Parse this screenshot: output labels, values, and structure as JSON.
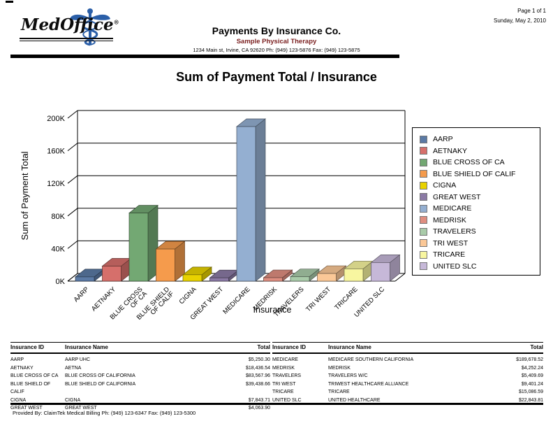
{
  "page": {
    "page_indicator": "Page 1 of 1",
    "date": "Sunday, May 2, 2010",
    "footer": "Provided By: ClaimTek Medical Billing Ph: (949) 123-6347 Fax: (949) 123-5300"
  },
  "header": {
    "logo_text": "MedOffice",
    "logo_reg": "®",
    "title": "Payments By Insurance Co.",
    "subtitle": "Sample Physical Therapy",
    "subtitle_color": "#7b2121",
    "address": "1234 Main st, Irvine, CA 92620 Ph: (949) 123-5876 Fax: (949) 123-5875"
  },
  "chart_data": {
    "type": "bar",
    "projection": "3d",
    "title": "Sum of Payment Total / Insurance",
    "xlabel": "Insurance",
    "ylabel": "Sum of Payment Total",
    "ylim": [
      0,
      200000
    ],
    "ytick_labels": [
      "0K",
      "40K",
      "80K",
      "120K",
      "160K",
      "200K"
    ],
    "grid": true,
    "legend_position": "right",
    "categories": [
      "AARP",
      "AETNAKY",
      "BLUE CROSS OF CA",
      "BLUE SHIELD OF CALIF",
      "CIGNA",
      "GREAT WEST",
      "MEDICARE",
      "MEDRISK",
      "TRAVELERS",
      "TRI WEST",
      "TRICARE",
      "UNITED SLC"
    ],
    "tick_lines": [
      [
        "AARP"
      ],
      [
        "AETNAKY"
      ],
      [
        "BLUE CROSS",
        "OF CA"
      ],
      [
        "BLUE SHIELD",
        "OF CALIF"
      ],
      [
        "CIGNA"
      ],
      [
        "GREAT WEST"
      ],
      [
        "MEDICARE"
      ],
      [
        "MEDRISK"
      ],
      [
        "TRAVELERS"
      ],
      [
        "TRI WEST"
      ],
      [
        "TRICARE"
      ],
      [
        "UNITED SLC"
      ]
    ],
    "values": [
      5250.3,
      18436.54,
      83567.96,
      39438.66,
      7843.71,
      4063.9,
      189678.52,
      4252.24,
      5409.69,
      9401.24,
      15086.59,
      22843.81
    ],
    "colors": [
      "#5b7aa5",
      "#d66f6b",
      "#73a873",
      "#f59b4c",
      "#e8d200",
      "#8b7aa5",
      "#94afd1",
      "#df8e80",
      "#a9cba9",
      "#fbc897",
      "#f8f6a0",
      "#c6b8d8"
    ]
  },
  "tables": {
    "headers": [
      "Insurance ID",
      "Insurance Name",
      "Total"
    ],
    "left": {
      "rows": [
        [
          "AARP",
          "AARP UHC",
          "$5,250.30"
        ],
        [
          "AETNAKY",
          "AETNA",
          "$18,436.54"
        ],
        [
          "BLUE CROSS OF CA",
          "BLUE CROSS OF CALIFORNIA",
          "$83,567.96"
        ],
        [
          "BLUE SHIELD OF CALIF",
          "BLUE SHIELD OF CALIFORNIA",
          "$39,438.66"
        ],
        [
          "CIGNA",
          "CIGNA",
          "$7,843.71"
        ],
        [
          "GREAT WEST",
          "GREAT WEST",
          "$4,063.90"
        ]
      ]
    },
    "right": {
      "rows": [
        [
          "MEDICARE",
          "MEDICARE SOUTHERN CALIFORNIA",
          "$189,678.52"
        ],
        [
          "MEDRISK",
          "MEDRISK",
          "$4,252.24"
        ],
        [
          "TRAVELERS",
          "TRAVELERS W/C",
          "$5,409.69"
        ],
        [
          "TRI WEST",
          "TRIWEST HEALTHCARE ALLIANCE",
          "$9,401.24"
        ],
        [
          "TRICARE",
          "TRICARE",
          "$15,086.59"
        ],
        [
          "UNITED SLC",
          "UNITED HEALTHCARE",
          "$22,843.81"
        ]
      ]
    }
  }
}
